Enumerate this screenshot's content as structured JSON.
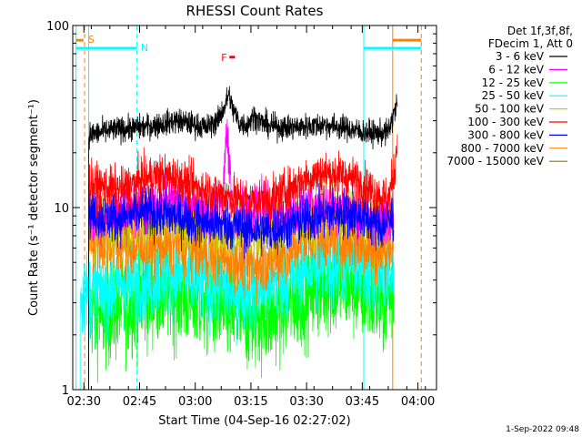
{
  "chart_data": {
    "type": "line",
    "title": "RHESSI Count Rates",
    "xlabel": "Start Time (04-Sep-16 02:27:02)",
    "ylabel": "Count Rate (s⁻¹ detector segment⁻¹)",
    "yscale": "log",
    "ylim": [
      1,
      100
    ],
    "xlim_minutes": [
      -3,
      95
    ],
    "x_ticks": [
      {
        "label": "02:30",
        "minute": 0
      },
      {
        "label": "02:45",
        "minute": 15
      },
      {
        "label": "03:00",
        "minute": 30
      },
      {
        "label": "03:15",
        "minute": 45
      },
      {
        "label": "03:30",
        "minute": 60
      },
      {
        "label": "03:45",
        "minute": 75
      },
      {
        "label": "04:00",
        "minute": 90
      }
    ],
    "y_ticks": [
      {
        "label": "1",
        "value": 1
      },
      {
        "label": "10",
        "value": 10
      },
      {
        "label": "100",
        "value": 100
      }
    ],
    "legend": {
      "placement": "top-right",
      "header": [
        "Det 1f,3f,8f,",
        "FDecim 1, Att 0"
      ],
      "entries": [
        {
          "label": "3 - 6 keV",
          "color": "#000000"
        },
        {
          "label": "6 - 12 keV",
          "color": "#ff00ff"
        },
        {
          "label": "12 - 25 keV",
          "color": "#00ff00"
        },
        {
          "label": "25 - 50 keV",
          "color": "#00ffff"
        },
        {
          "label": "50 - 100 keV",
          "color": "#cccc00"
        },
        {
          "label": "100 - 300 keV",
          "color": "#ff0000"
        },
        {
          "label": "300 - 800 keV",
          "color": "#0000ff"
        },
        {
          "label": "800 - 7000 keV",
          "color": "#ff8000"
        },
        {
          "label": "7000 - 15000 keV",
          "color": "#808000"
        }
      ]
    },
    "series_draw_order": [
      {
        "name": "12 - 25 keV",
        "color": "#00ff00",
        "start": 1.3,
        "end": 83.5,
        "noise": 0.15,
        "points": [
          [
            1.3,
            2.8
          ],
          [
            5,
            2.6
          ],
          [
            10,
            2.9
          ],
          [
            15,
            3.2
          ],
          [
            20,
            3.5
          ],
          [
            25,
            3.4
          ],
          [
            30,
            3.2
          ],
          [
            35,
            3.0
          ],
          [
            40,
            2.6
          ],
          [
            45,
            2.5
          ],
          [
            50,
            2.6
          ],
          [
            55,
            3.0
          ],
          [
            60,
            3.5
          ],
          [
            65,
            3.8
          ],
          [
            70,
            3.9
          ],
          [
            75,
            3.6
          ],
          [
            80,
            3.0
          ],
          [
            83.5,
            3.5
          ]
        ]
      },
      {
        "name": "25 - 50 keV",
        "color": "#00ffff",
        "start": -1,
        "end": 83.5,
        "noise": 0.12,
        "points": [
          [
            -1,
            3.3
          ],
          [
            3,
            3.5
          ],
          [
            8,
            3.7
          ],
          [
            12,
            3.9
          ],
          [
            17,
            4.2
          ],
          [
            22,
            4.4
          ],
          [
            27,
            4.3
          ],
          [
            32,
            4.0
          ],
          [
            37,
            3.7
          ],
          [
            42,
            3.6
          ],
          [
            47,
            3.6
          ],
          [
            52,
            4.0
          ],
          [
            57,
            4.4
          ],
          [
            62,
            4.8
          ],
          [
            67,
            5.0
          ],
          [
            72,
            5.0
          ],
          [
            77,
            4.6
          ],
          [
            81,
            4.0
          ],
          [
            83.5,
            4.5
          ]
        ]
      },
      {
        "name": "800 - 7000 keV",
        "color": "#ff8000",
        "start": 1.3,
        "end": 83.5,
        "noise": 0.09,
        "points": [
          [
            1.3,
            7.0
          ],
          [
            5,
            6.6
          ],
          [
            10,
            6.2
          ],
          [
            15,
            6.0
          ],
          [
            20,
            6.3
          ],
          [
            25,
            6.5
          ],
          [
            30,
            6.0
          ],
          [
            35,
            5.5
          ],
          [
            40,
            5.2
          ],
          [
            45,
            5.0
          ],
          [
            50,
            5.1
          ],
          [
            55,
            5.8
          ],
          [
            60,
            6.8
          ],
          [
            65,
            7.0
          ],
          [
            70,
            6.8
          ],
          [
            75,
            6.3
          ],
          [
            80,
            5.6
          ],
          [
            83.5,
            6.5
          ]
        ]
      },
      {
        "name": "50 - 100 keV",
        "color": "#cccc00",
        "start": 1.3,
        "end": 83.5,
        "noise": 0.08,
        "points": [
          [
            1.3,
            8.5
          ],
          [
            10,
            8.2
          ],
          [
            20,
            8.4
          ],
          [
            30,
            8.0
          ],
          [
            40,
            7.5
          ],
          [
            50,
            7.6
          ],
          [
            58,
            8.6
          ],
          [
            65,
            9.4
          ],
          [
            72,
            9.5
          ],
          [
            78,
            8.8
          ],
          [
            83.5,
            9.0
          ]
        ]
      },
      {
        "name": "6 - 12 keV",
        "color": "#ff00ff",
        "start": 1.3,
        "end": 83.5,
        "noise": 0.07,
        "points": [
          [
            1.3,
            8.8
          ],
          [
            10,
            9.0
          ],
          [
            20,
            10.5
          ],
          [
            25,
            11.0
          ],
          [
            30,
            10.0
          ],
          [
            34,
            9.2
          ],
          [
            36,
            9.5
          ],
          [
            37.4,
            10.5
          ],
          [
            38,
            19.0
          ],
          [
            38.6,
            27.0
          ],
          [
            39.2,
            17.0
          ],
          [
            40,
            10.0
          ],
          [
            45,
            9.0
          ],
          [
            48,
            11.5
          ],
          [
            50,
            9.5
          ],
          [
            55,
            9.0
          ],
          [
            60,
            10.0
          ],
          [
            65,
            10.2
          ],
          [
            70,
            10.0
          ],
          [
            75,
            9.0
          ],
          [
            80,
            8.5
          ],
          [
            83.5,
            9.5
          ]
        ]
      },
      {
        "name": "300 - 800 keV",
        "color": "#0000ff",
        "start": 1.3,
        "end": 83.5,
        "noise": 0.07,
        "points": [
          [
            1.3,
            9.5
          ],
          [
            5,
            9.0
          ],
          [
            10,
            8.8
          ],
          [
            15,
            9.5
          ],
          [
            20,
            9.2
          ],
          [
            25,
            9.0
          ],
          [
            30,
            8.5
          ],
          [
            35,
            8.2
          ],
          [
            40,
            8.0
          ],
          [
            45,
            7.6
          ],
          [
            50,
            7.5
          ],
          [
            55,
            8.0
          ],
          [
            60,
            8.6
          ],
          [
            65,
            9.2
          ],
          [
            70,
            9.4
          ],
          [
            75,
            9.0
          ],
          [
            80,
            7.8
          ],
          [
            83.5,
            9.0
          ]
        ]
      },
      {
        "name": "100 - 300 keV",
        "color": "#ff0000",
        "start": 1.3,
        "end": 84.5,
        "noise": 0.06,
        "points": [
          [
            1.3,
            13.5
          ],
          [
            5,
            13.0
          ],
          [
            10,
            12.5
          ],
          [
            15,
            14.0
          ],
          [
            20,
            15.0
          ],
          [
            25,
            14.5
          ],
          [
            30,
            13.0
          ],
          [
            35,
            12.0
          ],
          [
            40,
            11.5
          ],
          [
            45,
            11.0
          ],
          [
            50,
            11.0
          ],
          [
            55,
            12.5
          ],
          [
            60,
            14.5
          ],
          [
            65,
            15.5
          ],
          [
            70,
            15.0
          ],
          [
            75,
            13.5
          ],
          [
            80,
            11.5
          ],
          [
            82,
            11.0
          ],
          [
            83.5,
            15.0
          ],
          [
            84.5,
            23.0
          ]
        ]
      },
      {
        "name": "3 - 6 keV",
        "color": "#000000",
        "start": 1.3,
        "end": 84.5,
        "noise": 0.035,
        "points": [
          [
            1.3,
            25.0
          ],
          [
            5,
            26.0
          ],
          [
            10,
            27.0
          ],
          [
            15,
            27.5
          ],
          [
            20,
            28.5
          ],
          [
            25,
            30.0
          ],
          [
            30,
            28.5
          ],
          [
            33,
            27.5
          ],
          [
            36,
            30.0
          ],
          [
            38,
            36.0
          ],
          [
            39,
            42.0
          ],
          [
            40,
            35.0
          ],
          [
            42,
            29.0
          ],
          [
            44,
            28.5
          ],
          [
            46,
            32.0
          ],
          [
            47,
            30.0
          ],
          [
            50,
            28.0
          ],
          [
            55,
            27.5
          ],
          [
            60,
            28.0
          ],
          [
            65,
            28.5
          ],
          [
            70,
            27.5
          ],
          [
            75,
            26.0
          ],
          [
            80,
            25.5
          ],
          [
            82,
            26.0
          ],
          [
            83,
            30.0
          ],
          [
            84.5,
            38.0
          ]
        ]
      }
    ],
    "vertical_markers": [
      {
        "minute": -2.1,
        "color": "#00ffff",
        "style": "solid"
      },
      {
        "minute": 0.2,
        "color": "#ff8000",
        "style": "dashed"
      },
      {
        "minute": 1.3,
        "color": "#00ffff",
        "style": "solid"
      },
      {
        "minute": 14.3,
        "color": "#00ffff",
        "style": "dashed"
      },
      {
        "minute": 75.4,
        "color": "#00ffff",
        "style": "solid"
      },
      {
        "minute": 83.2,
        "color": "#ff8000",
        "style": "solid"
      },
      {
        "minute": 90.9,
        "color": "#ff8000",
        "style": "dashed"
      }
    ],
    "state_bars": [
      {
        "from": -2.1,
        "to": 14.3,
        "value": 75,
        "color": "#00ffff"
      },
      {
        "from": 75.4,
        "to": 90.9,
        "value": 75,
        "color": "#00ffff"
      },
      {
        "from": -2.1,
        "to": -0.1,
        "value": 83,
        "color": "#ff8000"
      },
      {
        "from": 83.2,
        "to": 90.9,
        "value": 83,
        "color": "#ff8000"
      },
      {
        "from": 39.2,
        "to": 40.7,
        "value": 67,
        "color": "#ff0000"
      }
    ],
    "annotations": [
      {
        "text": "S",
        "minute": 1.1,
        "value": 84,
        "color": "#ff8000"
      },
      {
        "text": "N",
        "minute": 15.3,
        "value": 76,
        "color": "#00ffff"
      },
      {
        "text": "F",
        "minute": 37.0,
        "value": 67,
        "color": "#ff0000"
      }
    ]
  },
  "footer": {
    "date_stamp": "1-Sep-2022 09:48"
  }
}
